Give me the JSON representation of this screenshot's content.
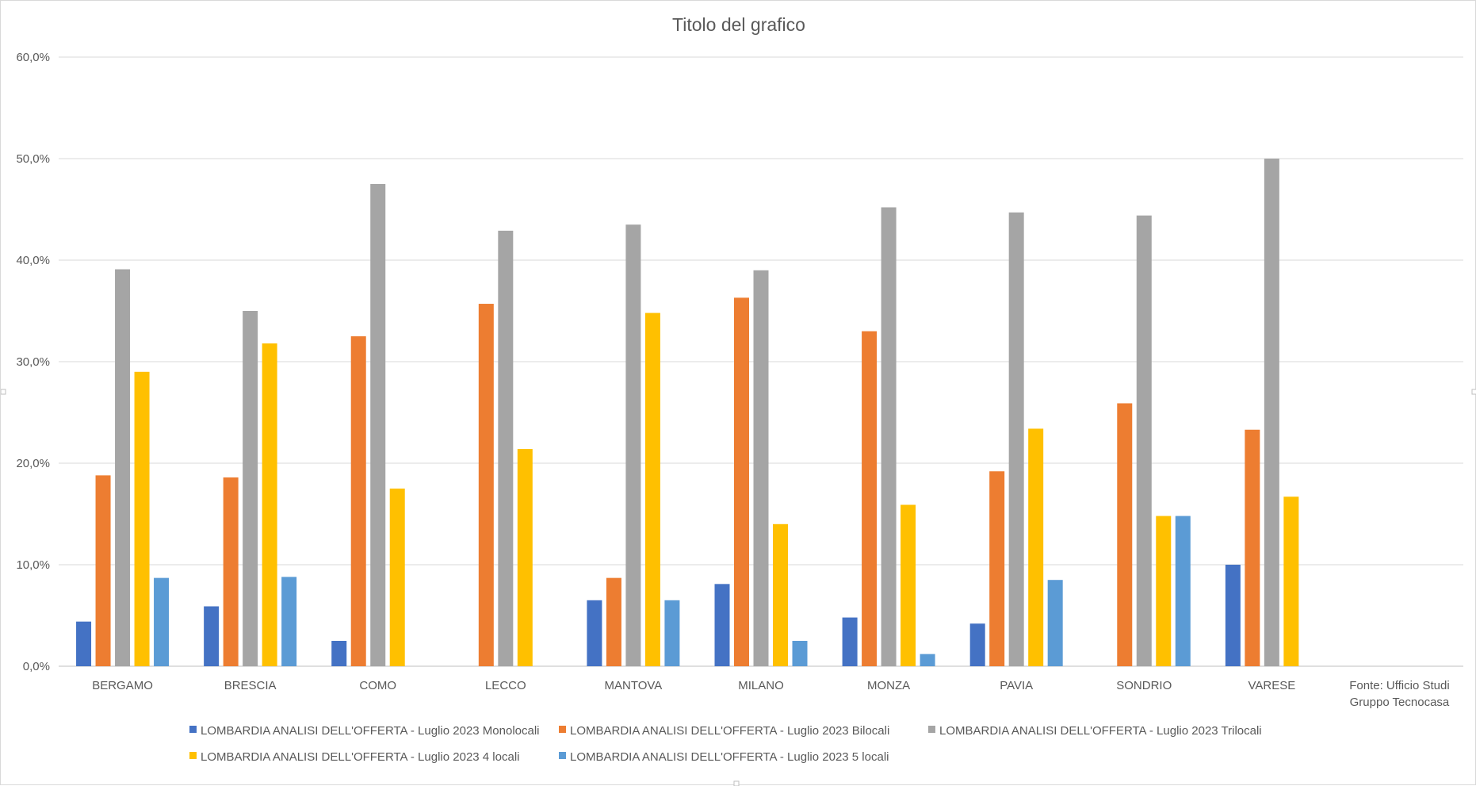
{
  "chart_data": {
    "type": "bar",
    "title": "Titolo del grafico",
    "xlabel": "",
    "ylabel": "",
    "ylim": [
      0,
      60
    ],
    "yticks": [
      "0,0%",
      "10,0%",
      "20,0%",
      "30,0%",
      "40,0%",
      "50,0%",
      "60,0%"
    ],
    "grid": true,
    "legend_position": "bottom",
    "categories": [
      "BERGAMO",
      "BRESCIA",
      "COMO",
      "LECCO",
      "MANTOVA",
      "MILANO",
      "MONZA",
      "PAVIA",
      "SONDRIO",
      "VARESE"
    ],
    "extra_category_label": [
      "Fonte: Ufficio Studi",
      "Gruppo Tecnocasa"
    ],
    "series": [
      {
        "name": "LOMBARDIA ANALISI DELL'OFFERTA - Luglio 2023 Monolocali",
        "color": "#4472c4",
        "values": [
          4.4,
          5.9,
          2.5,
          0,
          6.5,
          8.1,
          4.8,
          4.2,
          0,
          10.0
        ]
      },
      {
        "name": "LOMBARDIA ANALISI DELL'OFFERTA - Luglio 2023 Bilocali",
        "color": "#ed7d31",
        "values": [
          18.8,
          18.6,
          32.5,
          35.7,
          8.7,
          36.3,
          33.0,
          19.2,
          25.9,
          23.3
        ]
      },
      {
        "name": "LOMBARDIA ANALISI DELL'OFFERTA - Luglio 2023 Trilocali",
        "color": "#a5a5a5",
        "values": [
          39.1,
          35.0,
          47.5,
          42.9,
          43.5,
          39.0,
          45.2,
          44.7,
          44.4,
          50.0
        ]
      },
      {
        "name": "LOMBARDIA ANALISI DELL'OFFERTA - Luglio 2023 4 locali",
        "color": "#ffc000",
        "values": [
          29.0,
          31.8,
          17.5,
          21.4,
          34.8,
          14.0,
          15.9,
          23.4,
          14.8,
          16.7
        ]
      },
      {
        "name": "LOMBARDIA ANALISI DELL'OFFERTA - Luglio 2023 5 locali",
        "color": "#5b9bd5",
        "values": [
          8.7,
          8.8,
          0,
          0,
          6.5,
          2.5,
          1.2,
          8.5,
          14.8,
          0
        ]
      }
    ]
  }
}
